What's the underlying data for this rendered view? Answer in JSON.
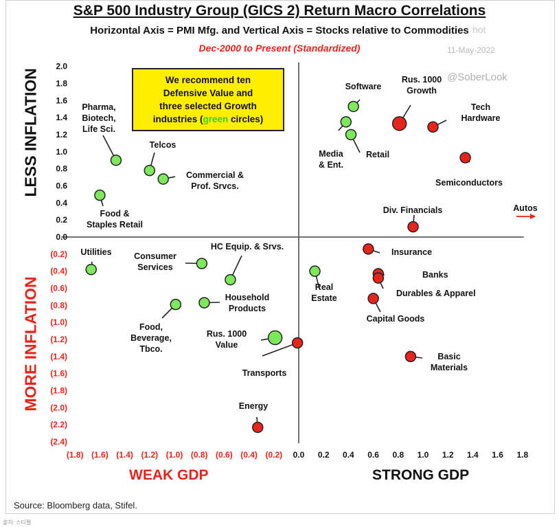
{
  "chart_data": {
    "type": "scatter",
    "title": "S&P 500 Industry Group (GICS 2) Return Macro Correlations",
    "subtitle": "Horizontal Axis = PMI Mfg. and Vertical Axis = Stocks relative to Commodities",
    "period": "Dec-2000 to Present (Standardized)",
    "date": "11-May-2022",
    "watermark_top": "hot",
    "watermark": "@SoberLook",
    "callout": {
      "line1": "We recommend ten",
      "line2": "Defensive Value and",
      "line3": "three selected Growth",
      "line4_pre": "industries (",
      "line4_green": "green",
      "line4_post": " circles)"
    },
    "ylabel_top": "LESS INFLATION",
    "ylabel_bottom": "MORE INFLATION",
    "xlabel_left": "WEAK GDP",
    "xlabel_right": "STRONG GDP",
    "xlim": [
      -1.8,
      1.8
    ],
    "ylim": [
      -2.4,
      2.0
    ],
    "x_ticks": [
      {
        "v": -1.8,
        "t": "(1.8)"
      },
      {
        "v": -1.6,
        "t": "(1.6)"
      },
      {
        "v": -1.4,
        "t": "(1.4)"
      },
      {
        "v": -1.2,
        "t": "(1.2)"
      },
      {
        "v": -1.0,
        "t": "(1.0)"
      },
      {
        "v": -0.8,
        "t": "(0.8)"
      },
      {
        "v": -0.6,
        "t": "(0.6)"
      },
      {
        "v": -0.4,
        "t": "(0.4)"
      },
      {
        "v": -0.2,
        "t": "(0.2)"
      },
      {
        "v": 0.0,
        "t": "0.0"
      },
      {
        "v": 0.2,
        "t": "0.2"
      },
      {
        "v": 0.4,
        "t": "0.4"
      },
      {
        "v": 0.6,
        "t": "0.6"
      },
      {
        "v": 0.8,
        "t": "0.8"
      },
      {
        "v": 1.0,
        "t": "1.0"
      },
      {
        "v": 1.2,
        "t": "1.2"
      },
      {
        "v": 1.4,
        "t": "1.4"
      },
      {
        "v": 1.6,
        "t": "1.6"
      },
      {
        "v": 1.8,
        "t": "1.8"
      }
    ],
    "y_ticks": [
      {
        "v": 2.0,
        "t": "2.0"
      },
      {
        "v": 1.8,
        "t": "1.8"
      },
      {
        "v": 1.6,
        "t": "1.6"
      },
      {
        "v": 1.4,
        "t": "1.4"
      },
      {
        "v": 1.2,
        "t": "1.2"
      },
      {
        "v": 1.0,
        "t": "1.0"
      },
      {
        "v": 0.8,
        "t": "0.8"
      },
      {
        "v": 0.6,
        "t": "0.6"
      },
      {
        "v": 0.4,
        "t": "0.4"
      },
      {
        "v": 0.2,
        "t": "0.2"
      },
      {
        "v": 0.0,
        "t": "0.0"
      },
      {
        "v": -0.2,
        "t": "(0.2)"
      },
      {
        "v": -0.4,
        "t": "(0.4)"
      },
      {
        "v": -0.6,
        "t": "(0.6)"
      },
      {
        "v": -0.8,
        "t": "(0.8)"
      },
      {
        "v": -1.0,
        "t": "(1.0)"
      },
      {
        "v": -1.2,
        "t": "(1.2)"
      },
      {
        "v": -1.4,
        "t": "(1.4)"
      },
      {
        "v": -1.6,
        "t": "(1.6)"
      },
      {
        "v": -1.8,
        "t": "(1.8)"
      },
      {
        "v": -2.0,
        "t": "(2.0)"
      },
      {
        "v": -2.2,
        "t": "(2.2)"
      },
      {
        "v": -2.4,
        "t": "(2.4)"
      }
    ],
    "colors": {
      "green": "#7ee85c",
      "red": "#e8241c",
      "axis": "#444444",
      "negative_tick": "#e8241c",
      "positive_tick": "#111111"
    },
    "points": [
      {
        "label": [
          "Pharma,",
          "Biotech,",
          "Life Sci."
        ],
        "x": -1.47,
        "y": 0.9,
        "color": "green",
        "size": "normal"
      },
      {
        "label": [
          "Telcos"
        ],
        "x": -1.2,
        "y": 0.78,
        "color": "green",
        "size": "normal"
      },
      {
        "label": [
          "Commercial &",
          "Prof. Srvcs."
        ],
        "x": -1.09,
        "y": 0.68,
        "color": "green",
        "size": "normal"
      },
      {
        "label": [
          "Food &",
          "Staples Retail"
        ],
        "x": -1.6,
        "y": 0.49,
        "color": "green",
        "size": "normal"
      },
      {
        "label": [
          "Utilities"
        ],
        "x": -1.67,
        "y": -0.38,
        "color": "green",
        "size": "normal"
      },
      {
        "label": [
          "Consumer",
          "Services"
        ],
        "x": -0.78,
        "y": -0.31,
        "color": "green",
        "size": "normal"
      },
      {
        "label": [
          "HC Equip. & Srvs."
        ],
        "x": -0.55,
        "y": -0.5,
        "color": "green",
        "size": "normal"
      },
      {
        "label": [
          "Food,",
          "Beverage,",
          "Tbco."
        ],
        "x": -0.99,
        "y": -0.79,
        "color": "green",
        "size": "normal"
      },
      {
        "label": [
          "Household",
          "Products"
        ],
        "x": -0.76,
        "y": -0.77,
        "color": "green",
        "size": "normal"
      },
      {
        "label": [
          "Rus. 1000",
          "Value"
        ],
        "x": -0.19,
        "y": -1.18,
        "color": "green",
        "size": "large"
      },
      {
        "label": [
          "Transports"
        ],
        "x": -0.01,
        "y": -1.24,
        "color": "red",
        "size": "normal"
      },
      {
        "label": [
          "Energy"
        ],
        "x": -0.33,
        "y": -2.23,
        "color": "red",
        "size": "normal"
      },
      {
        "label": [
          "Real",
          "Estate"
        ],
        "x": 0.13,
        "y": -0.4,
        "color": "green",
        "size": "normal"
      },
      {
        "label": [
          "Software"
        ],
        "x": 0.44,
        "y": 1.53,
        "color": "green",
        "size": "normal"
      },
      {
        "label": [
          "Media",
          "& Ent."
        ],
        "x": 0.38,
        "y": 1.35,
        "color": "green",
        "size": "normal"
      },
      {
        "label": [
          "Retail"
        ],
        "x": 0.42,
        "y": 1.2,
        "color": "green",
        "size": "normal"
      },
      {
        "label": [
          "Rus. 1000",
          "Growth"
        ],
        "x": 0.81,
        "y": 1.33,
        "color": "red",
        "size": "large"
      },
      {
        "label": [
          "Tech",
          "Hardware"
        ],
        "x": 1.08,
        "y": 1.29,
        "color": "red",
        "size": "normal"
      },
      {
        "label": [
          "Semiconductors"
        ],
        "x": 1.34,
        "y": 0.93,
        "color": "red",
        "size": "normal"
      },
      {
        "label": [
          "Div. Financials"
        ],
        "x": 0.92,
        "y": 0.12,
        "color": "red",
        "size": "normal"
      },
      {
        "label": [
          "Insurance"
        ],
        "x": 0.56,
        "y": -0.14,
        "color": "red",
        "size": "normal"
      },
      {
        "label": [
          "Banks"
        ],
        "x": 0.64,
        "y": -0.43,
        "color": "red",
        "size": "normal"
      },
      {
        "label": [
          "Durables & Apparel"
        ],
        "x": 0.64,
        "y": -0.48,
        "color": "red",
        "size": "normal"
      },
      {
        "label": [
          "Capital Goods"
        ],
        "x": 0.6,
        "y": -0.72,
        "color": "red",
        "size": "normal"
      },
      {
        "label": [
          "Basic",
          "Materials"
        ],
        "x": 0.9,
        "y": -1.4,
        "color": "red",
        "size": "normal"
      }
    ],
    "offchart": [
      {
        "label": [
          "Autos"
        ],
        "color": "red"
      }
    ]
  },
  "source": "Source: Bloomberg data, Stifel.",
  "footnote": "출처: 스티펠"
}
